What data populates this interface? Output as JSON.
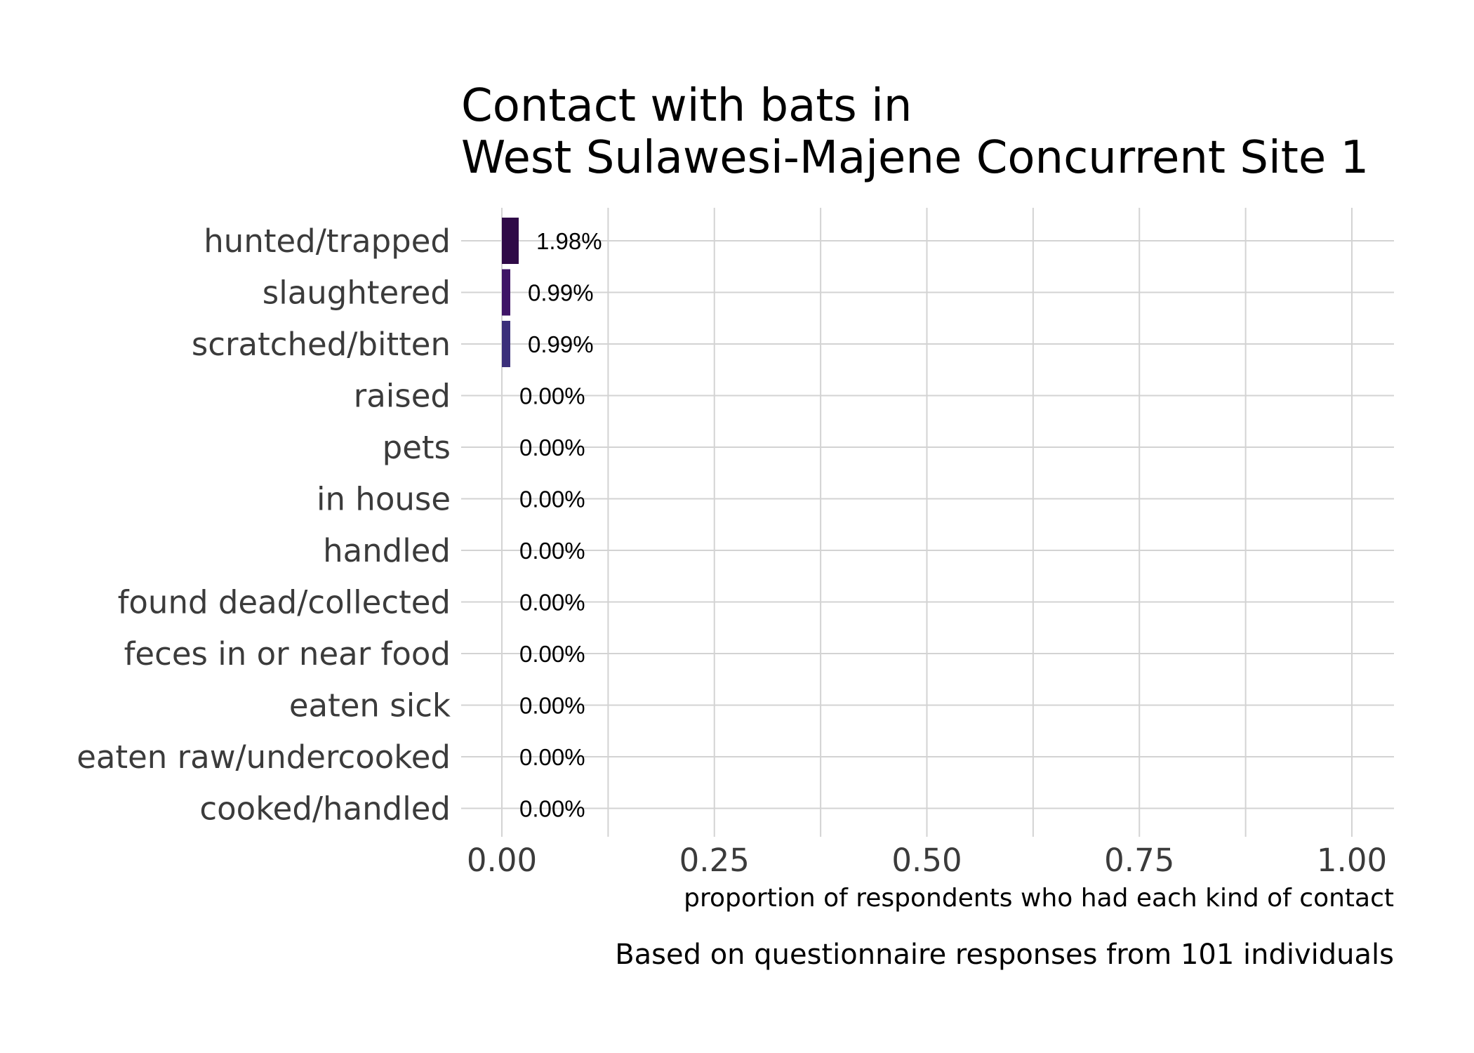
{
  "chart_data": {
    "type": "bar",
    "orientation": "horizontal",
    "title_lines": [
      "Contact with bats in",
      "West Sulawesi-Majene Concurrent Site 1"
    ],
    "categories": [
      "hunted/trapped",
      "slaughtered",
      "scratched/bitten",
      "raised",
      "pets",
      "in house",
      "handled",
      "found dead/collected",
      "feces in or near food",
      "eaten sick",
      "eaten raw/undercooked",
      "cooked/handled"
    ],
    "values": [
      0.0198,
      0.0099,
      0.0099,
      0,
      0,
      0,
      0,
      0,
      0,
      0,
      0,
      0
    ],
    "value_labels": [
      "1.98%",
      "0.99%",
      "0.99%",
      "0.00%",
      "0.00%",
      "0.00%",
      "0.00%",
      "0.00%",
      "0.00%",
      "0.00%",
      "0.00%",
      "0.00%"
    ],
    "colors": [
      "#2f0a47",
      "#3e1466",
      "#3b2f7a",
      "#3b2f7a",
      "#3b2f7a",
      "#3b2f7a",
      "#3b2f7a",
      "#3b2f7a",
      "#3b2f7a",
      "#3b2f7a",
      "#3b2f7a",
      "#3b2f7a"
    ],
    "xlim": [
      0,
      1.05
    ],
    "xticks": [
      0,
      0.25,
      0.5,
      0.75,
      1.0
    ],
    "xtick_labels": [
      "0.00",
      "0.25",
      "0.50",
      "0.75",
      "1.00"
    ],
    "xlabel": "proportion of respondents who had each kind of contact",
    "ylabel": "",
    "caption": "Based on questionnaire responses from 101 individuals",
    "grid": true,
    "legend": "none"
  }
}
